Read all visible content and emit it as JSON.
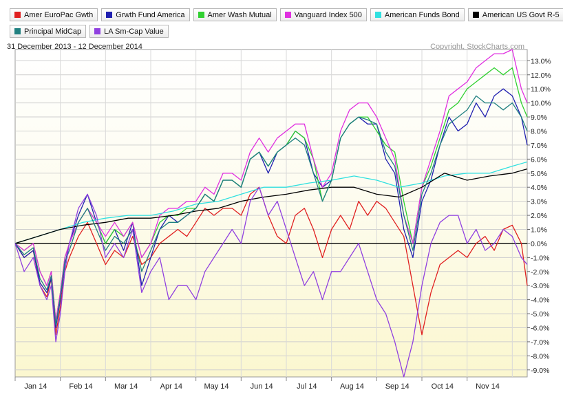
{
  "chart_data": {
    "type": "line",
    "date_range": "31 December 2013 - 12 December 2014",
    "copyright": "Copyright, StockCharts.com",
    "x_labels": [
      "Jan 14",
      "Feb 14",
      "Mar 14",
      "Apr 14",
      "May 14",
      "Jun 14",
      "Jul 14",
      "Aug 14",
      "Sep 14",
      "Oct 14",
      "Nov 14"
    ],
    "y_ticks": [
      "13.0%",
      "12.0%",
      "11.0%",
      "10.0%",
      "9.0%",
      "8.0%",
      "7.0%",
      "6.0%",
      "5.0%",
      "4.0%",
      "3.0%",
      "2.0%",
      "1.0%",
      "0.0%",
      "-1.0%",
      "-2.0%",
      "-3.0%",
      "-4.0%",
      "-5.0%",
      "-6.0%",
      "-7.0%",
      "-8.0%",
      "-9.0%"
    ],
    "ylim": [
      -9.5,
      13.8
    ],
    "grid": true,
    "legend_position": "top",
    "series": [
      {
        "name": "Amer EuroPac Gwth",
        "color": "#e02020",
        "x": [
          0,
          0.2,
          0.4,
          0.55,
          0.7,
          0.8,
          0.9,
          1.0,
          1.1,
          1.2,
          1.4,
          1.6,
          1.8,
          2.0,
          2.2,
          2.4,
          2.6,
          2.8,
          3.0,
          3.2,
          3.4,
          3.6,
          3.8,
          4.0,
          4.2,
          4.4,
          4.6,
          4.8,
          5.0,
          5.2,
          5.4,
          5.6,
          5.8,
          6.0,
          6.2,
          6.4,
          6.6,
          6.8,
          7.0,
          7.2,
          7.4,
          7.6,
          7.8,
          8.0,
          8.2,
          8.4,
          8.6,
          8.8,
          9.0,
          9.2,
          9.4,
          9.6,
          9.8,
          10.0,
          10.2,
          10.4,
          10.6,
          10.8,
          11.0,
          11.2,
          11.33
        ],
        "y": [
          0,
          -1,
          -0.5,
          -3,
          -3.8,
          -2.5,
          -6.5,
          -4.5,
          -2,
          -1,
          0.5,
          1.5,
          0,
          -1.5,
          -0.5,
          -1,
          0.5,
          -1.5,
          -1,
          0,
          0.5,
          1,
          0.5,
          1.5,
          2.5,
          2,
          2.5,
          2.5,
          2,
          3.5,
          4,
          2,
          0.5,
          0,
          2,
          2.5,
          1,
          -1,
          1,
          2,
          1,
          3,
          2,
          3,
          2.5,
          1.5,
          0.5,
          -3,
          -6.5,
          -3.5,
          -1.5,
          -1,
          -0.5,
          -1,
          0,
          0.5,
          -0.5,
          1,
          1.3,
          0,
          -3
        ]
      },
      {
        "name": "Grwth Fund America",
        "color": "#2020b0",
        "x": [
          0,
          0.2,
          0.4,
          0.55,
          0.7,
          0.8,
          0.9,
          1.0,
          1.1,
          1.2,
          1.4,
          1.6,
          1.8,
          2.0,
          2.2,
          2.4,
          2.6,
          2.8,
          3.0,
          3.2,
          3.4,
          3.6,
          3.8,
          4.0,
          4.2,
          4.4,
          4.6,
          4.8,
          5.0,
          5.2,
          5.4,
          5.6,
          5.8,
          6.0,
          6.2,
          6.4,
          6.6,
          6.8,
          7.0,
          7.2,
          7.4,
          7.6,
          7.8,
          8.0,
          8.2,
          8.4,
          8.6,
          8.8,
          9.0,
          9.2,
          9.4,
          9.6,
          9.8,
          10.0,
          10.2,
          10.4,
          10.6,
          10.8,
          11.0,
          11.2,
          11.33
        ],
        "y": [
          0,
          -1,
          -0.5,
          -2.8,
          -3.5,
          -2.5,
          -6,
          -4,
          -1.5,
          0,
          2,
          3.5,
          1.5,
          0,
          1,
          -0.5,
          1.5,
          -3,
          -1,
          1,
          2,
          1.5,
          2,
          2.5,
          3.5,
          3,
          4.5,
          4.5,
          4,
          6,
          6.5,
          5,
          6.5,
          7,
          8,
          7.5,
          5,
          4,
          4.5,
          7.5,
          8.5,
          9,
          8.5,
          8.5,
          6,
          5,
          1,
          -1,
          3,
          4.5,
          7,
          9,
          8,
          8.5,
          10,
          9,
          10.5,
          11,
          10.5,
          9,
          7
        ]
      },
      {
        "name": "Amer Wash Mutual",
        "color": "#30d030",
        "x": [
          0,
          0.2,
          0.4,
          0.55,
          0.7,
          0.8,
          0.9,
          1.0,
          1.1,
          1.2,
          1.4,
          1.6,
          1.8,
          2.0,
          2.2,
          2.4,
          2.6,
          2.8,
          3.0,
          3.2,
          3.4,
          3.6,
          3.8,
          4.0,
          4.2,
          4.4,
          4.6,
          4.8,
          5.0,
          5.2,
          5.4,
          5.6,
          5.8,
          6.0,
          6.2,
          6.4,
          6.6,
          6.8,
          7.0,
          7.2,
          7.4,
          7.6,
          7.8,
          8.0,
          8.2,
          8.4,
          8.6,
          8.8,
          9.0,
          9.2,
          9.4,
          9.6,
          9.8,
          10.0,
          10.2,
          10.4,
          10.6,
          10.8,
          11.0,
          11.2,
          11.33
        ],
        "y": [
          0,
          -0.5,
          0,
          -2,
          -3,
          -2,
          -5.5,
          -3.5,
          -1,
          0,
          1.5,
          2.5,
          1.5,
          0,
          1,
          0.5,
          1.5,
          -1,
          0,
          1.5,
          2,
          2,
          2.5,
          2.5,
          3.5,
          3,
          4.5,
          4.5,
          4,
          6,
          6.5,
          5.5,
          6.5,
          7,
          8,
          7.5,
          6,
          3,
          4.5,
          7.5,
          8.5,
          9,
          9,
          8,
          7,
          6.5,
          3,
          0,
          4,
          5.5,
          7.5,
          9.5,
          10,
          11,
          11.5,
          12,
          12.5,
          12,
          12.5,
          10,
          9
        ]
      },
      {
        "name": "Vanguard Index 500",
        "color": "#e030e0",
        "x": [
          0,
          0.2,
          0.4,
          0.55,
          0.7,
          0.8,
          0.9,
          1.0,
          1.1,
          1.2,
          1.4,
          1.6,
          1.8,
          2.0,
          2.2,
          2.4,
          2.6,
          2.8,
          3.0,
          3.2,
          3.4,
          3.6,
          3.8,
          4.0,
          4.2,
          4.4,
          4.6,
          4.8,
          5.0,
          5.2,
          5.4,
          5.6,
          5.8,
          6.0,
          6.2,
          6.4,
          6.6,
          6.8,
          7.0,
          7.2,
          7.4,
          7.6,
          7.8,
          8.0,
          8.2,
          8.4,
          8.6,
          8.8,
          9.0,
          9.2,
          9.4,
          9.6,
          9.8,
          10.0,
          10.2,
          10.4,
          10.6,
          10.8,
          11.0,
          11.2,
          11.33
        ],
        "y": [
          0,
          -0.5,
          0,
          -2,
          -3,
          -2,
          -5.5,
          -3.5,
          -1,
          0,
          1.5,
          2.5,
          1.5,
          0.5,
          1.5,
          0.5,
          1.5,
          -1,
          0,
          2,
          2.5,
          2.5,
          3,
          3,
          4,
          3.5,
          5,
          5,
          4.5,
          6.5,
          7.5,
          6.5,
          7.5,
          8,
          8.5,
          8.5,
          6,
          4,
          5,
          8,
          9.5,
          10,
          10,
          9,
          7.5,
          6,
          2,
          0,
          4,
          6,
          8,
          10.5,
          11,
          11.5,
          12.5,
          13,
          13.5,
          13.5,
          13.8,
          11,
          10
        ]
      },
      {
        "name": "American Funds Bond",
        "color": "#30e0e0",
        "x": [
          0,
          0.5,
          1.0,
          1.5,
          2.0,
          2.5,
          3.0,
          3.5,
          4.0,
          4.5,
          5.0,
          5.5,
          6.0,
          6.5,
          7.0,
          7.5,
          8.0,
          8.5,
          9.0,
          9.5,
          10.0,
          10.5,
          11.0,
          11.33
        ],
        "y": [
          0,
          0.5,
          1,
          1.5,
          1.8,
          2,
          2,
          2.3,
          2.8,
          3,
          3.5,
          4,
          4,
          4.3,
          4.5,
          4.8,
          4.5,
          4,
          4.3,
          4.8,
          5,
          5,
          5.5,
          5.8
        ]
      },
      {
        "name": "American US Govt R-5",
        "color": "#000000",
        "x": [
          0,
          0.5,
          1.0,
          1.5,
          2.0,
          2.5,
          3.0,
          3.5,
          4.0,
          4.5,
          5.0,
          5.5,
          6.0,
          6.5,
          7.0,
          7.5,
          8.0,
          8.5,
          9.0,
          9.5,
          10.0,
          10.5,
          11.0,
          11.33
        ],
        "y": [
          0,
          0.5,
          1,
          1.3,
          1.5,
          1.8,
          1.8,
          2,
          2.3,
          2.5,
          3,
          3.3,
          3.5,
          3.8,
          4,
          4,
          3.5,
          3.3,
          4,
          5,
          4.5,
          4.8,
          5,
          5.3
        ]
      },
      {
        "name": "Principal MidCap",
        "color": "#208080",
        "x": [
          0,
          0.2,
          0.4,
          0.55,
          0.7,
          0.8,
          0.9,
          1.0,
          1.1,
          1.2,
          1.4,
          1.6,
          1.8,
          2.0,
          2.2,
          2.4,
          2.6,
          2.8,
          3.0,
          3.2,
          3.4,
          3.6,
          3.8,
          4.0,
          4.2,
          4.4,
          4.6,
          4.8,
          5.0,
          5.2,
          5.4,
          5.6,
          5.8,
          6.0,
          6.2,
          6.4,
          6.6,
          6.8,
          7.0,
          7.2,
          7.4,
          7.6,
          7.8,
          8.0,
          8.2,
          8.4,
          8.6,
          8.8,
          9.0,
          9.2,
          9.4,
          9.6,
          9.8,
          10.0,
          10.2,
          10.4,
          10.6,
          10.8,
          11.0,
          11.2,
          11.33
        ],
        "y": [
          0,
          -0.8,
          -0.3,
          -2.5,
          -3.3,
          -2.3,
          -5.8,
          -3.8,
          -1.3,
          -0.5,
          1.5,
          2.5,
          1,
          -0.5,
          0.5,
          0,
          1,
          -2,
          -0.5,
          1,
          1.5,
          1.5,
          2,
          2.5,
          3.5,
          3,
          4.5,
          4.5,
          4,
          6,
          6.5,
          5.5,
          6.5,
          7,
          7.5,
          7,
          5,
          3,
          4.5,
          7.5,
          8.5,
          9,
          8.8,
          8.5,
          6.5,
          5.5,
          2,
          -0.5,
          3.5,
          5,
          7,
          8.5,
          9,
          9.5,
          10.5,
          10,
          10,
          9.5,
          10,
          9,
          8
        ]
      },
      {
        "name": "LA Sm-Cap Value",
        "color": "#9040e0",
        "x": [
          0,
          0.2,
          0.4,
          0.55,
          0.7,
          0.8,
          0.9,
          1.0,
          1.1,
          1.2,
          1.4,
          1.6,
          1.8,
          2.0,
          2.2,
          2.4,
          2.6,
          2.8,
          3.0,
          3.2,
          3.4,
          3.6,
          3.8,
          4.0,
          4.2,
          4.4,
          4.6,
          4.8,
          5.0,
          5.2,
          5.4,
          5.6,
          5.8,
          6.0,
          6.2,
          6.4,
          6.6,
          6.8,
          7.0,
          7.2,
          7.4,
          7.6,
          7.8,
          8.0,
          8.2,
          8.4,
          8.6,
          8.8,
          9.0,
          9.2,
          9.4,
          9.6,
          9.8,
          10.0,
          10.2,
          10.4,
          10.6,
          10.8,
          11.0,
          11.2,
          11.33
        ],
        "y": [
          0,
          -2,
          -1,
          -3,
          -4,
          -3,
          -7,
          -5,
          -2,
          0,
          2.5,
          3.5,
          2,
          -1,
          0,
          -1,
          1,
          -3.5,
          -2,
          -1,
          -4,
          -3,
          -3,
          -4,
          -2,
          -1,
          0,
          1,
          0,
          3,
          4,
          2,
          3,
          1,
          -1,
          -3,
          -2,
          -4,
          -2,
          -2,
          -1,
          0,
          -2,
          -4,
          -5,
          -7,
          -9.5,
          -7,
          -3,
          0,
          1.5,
          2,
          2,
          0,
          1,
          -0.5,
          0,
          1,
          0.5,
          -1,
          -1.5
        ]
      }
    ]
  }
}
